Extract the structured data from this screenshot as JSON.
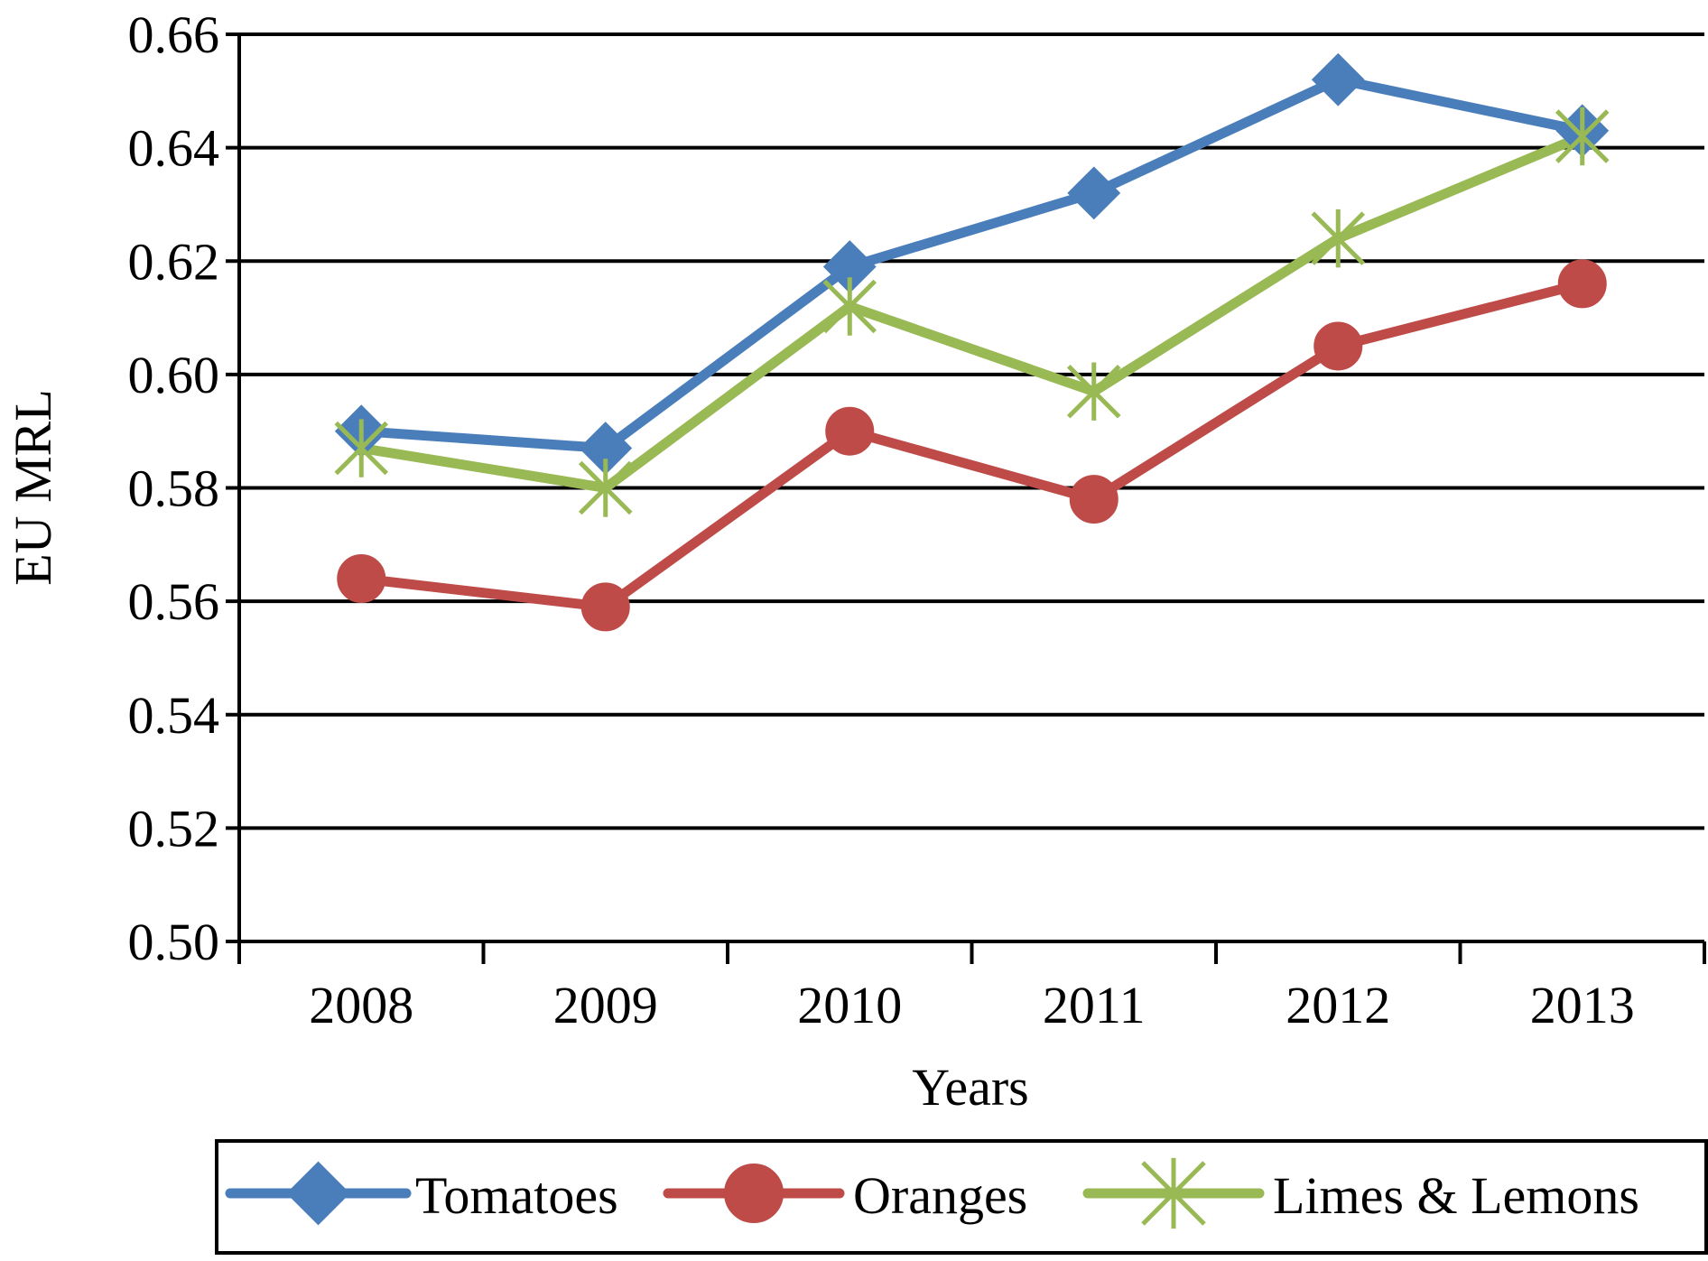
{
  "chart_data": {
    "type": "line",
    "title": "",
    "xlabel": "Years",
    "ylabel": "EU MRL",
    "categories": [
      "2008",
      "2009",
      "2010",
      "2011",
      "2012",
      "2013"
    ],
    "ylim": [
      0.5,
      0.66
    ],
    "yticks": [
      "0.50",
      "0.52",
      "0.54",
      "0.56",
      "0.58",
      "0.60",
      "0.62",
      "0.64",
      "0.66"
    ],
    "grid": true,
    "legend_position": "bottom",
    "series": [
      {
        "name": "Tomatoes",
        "values": [
          0.59,
          0.587,
          0.619,
          0.632,
          0.652,
          0.643
        ],
        "color": "#4a7ebb",
        "marker": "diamond"
      },
      {
        "name": "Oranges",
        "values": [
          0.564,
          0.559,
          0.59,
          0.578,
          0.605,
          0.616
        ],
        "color": "#be4b48",
        "marker": "circle"
      },
      {
        "name": "Limes & Lemons",
        "values": [
          0.587,
          0.58,
          0.612,
          0.597,
          0.624,
          0.642
        ],
        "color": "#98b954",
        "marker": "star"
      }
    ]
  }
}
